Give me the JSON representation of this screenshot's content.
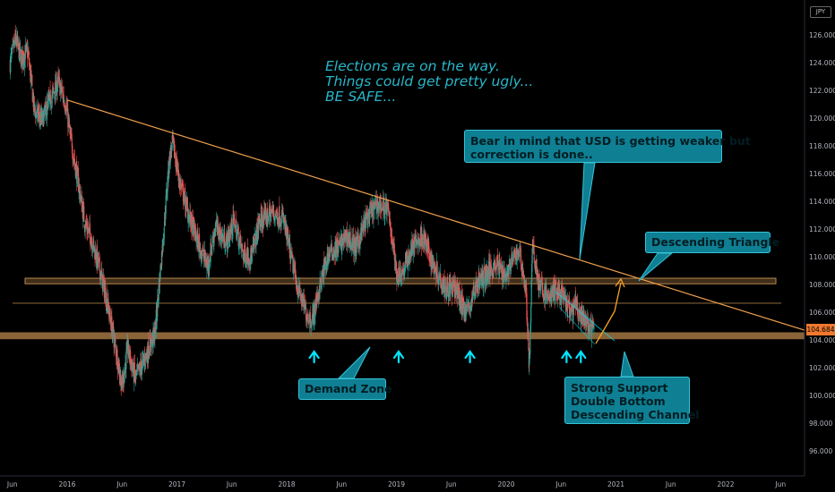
{
  "chart_data": {
    "type": "candlestick",
    "currency": "JPY",
    "last_price": "104.684",
    "y_ticks": [
      "126.000",
      "124.000",
      "122.000",
      "120.000",
      "118.000",
      "116.000",
      "114.000",
      "112.000",
      "110.000",
      "108.000",
      "106.000",
      "104.000",
      "102.000",
      "100.000",
      "98.000",
      "96.000"
    ],
    "ylim": [
      95,
      127.2
    ],
    "x_ticks": [
      {
        "t": 2015.5,
        "label": "Jun"
      },
      {
        "t": 2016.0,
        "label": "2016"
      },
      {
        "t": 2016.5,
        "label": "Jun"
      },
      {
        "t": 2017.0,
        "label": "2017"
      },
      {
        "t": 2017.5,
        "label": "Jun"
      },
      {
        "t": 2018.0,
        "label": "2018"
      },
      {
        "t": 2018.5,
        "label": "Jun"
      },
      {
        "t": 2019.0,
        "label": "2019"
      },
      {
        "t": 2019.5,
        "label": "Jun"
      },
      {
        "t": 2020.0,
        "label": "2020"
      },
      {
        "t": 2020.5,
        "label": "Jun"
      },
      {
        "t": 2021.0,
        "label": "2021"
      },
      {
        "t": 2021.5,
        "label": "Jun"
      },
      {
        "t": 2022.0,
        "label": "2022"
      },
      {
        "t": 2022.5,
        "label": "Jun"
      }
    ],
    "price_path": [
      [
        2015.48,
        124.0
      ],
      [
        2015.53,
        125.7
      ],
      [
        2015.58,
        124.3
      ],
      [
        2015.64,
        124.8
      ],
      [
        2015.7,
        120.6
      ],
      [
        2015.77,
        119.8
      ],
      [
        2015.84,
        121.2
      ],
      [
        2015.92,
        122.6
      ],
      [
        2015.99,
        120.9
      ],
      [
        2016.03,
        118.5
      ],
      [
        2016.08,
        116.3
      ],
      [
        2016.16,
        112.5
      ],
      [
        2016.22,
        111.3
      ],
      [
        2016.3,
        109.0
      ],
      [
        2016.37,
        106.5
      ],
      [
        2016.45,
        103.0
      ],
      [
        2016.5,
        100.6
      ],
      [
        2016.55,
        103.4
      ],
      [
        2016.62,
        101.2
      ],
      [
        2016.7,
        102.5
      ],
      [
        2016.8,
        104.5
      ],
      [
        2016.87,
        111.0
      ],
      [
        2016.93,
        117.0
      ],
      [
        2016.96,
        118.2
      ],
      [
        2017.02,
        115.6
      ],
      [
        2017.1,
        113.2
      ],
      [
        2017.17,
        111.5
      ],
      [
        2017.28,
        109.3
      ],
      [
        2017.35,
        112.2
      ],
      [
        2017.45,
        111.0
      ],
      [
        2017.52,
        112.6
      ],
      [
        2017.6,
        110.2
      ],
      [
        2017.68,
        110.0
      ],
      [
        2017.75,
        112.5
      ],
      [
        2017.87,
        113.2
      ],
      [
        2017.97,
        112.7
      ],
      [
        2018.03,
        110.3
      ],
      [
        2018.1,
        107.8
      ],
      [
        2018.18,
        105.9
      ],
      [
        2018.23,
        105.4
      ],
      [
        2018.3,
        107.8
      ],
      [
        2018.38,
        110.2
      ],
      [
        2018.47,
        110.7
      ],
      [
        2018.55,
        111.5
      ],
      [
        2018.63,
        110.6
      ],
      [
        2018.73,
        112.8
      ],
      [
        2018.83,
        113.8
      ],
      [
        2018.92,
        113.4
      ],
      [
        2018.96,
        111.4
      ],
      [
        2019.0,
        108.8
      ],
      [
        2019.06,
        108.9
      ],
      [
        2019.15,
        110.8
      ],
      [
        2019.24,
        111.5
      ],
      [
        2019.33,
        109.5
      ],
      [
        2019.45,
        107.8
      ],
      [
        2019.55,
        107.6
      ],
      [
        2019.6,
        106.4
      ],
      [
        2019.66,
        106.2
      ],
      [
        2019.73,
        108.1
      ],
      [
        2019.8,
        108.6
      ],
      [
        2019.9,
        109.5
      ],
      [
        2020.0,
        108.7
      ],
      [
        2020.05,
        109.6
      ],
      [
        2020.12,
        110.5
      ],
      [
        2020.18,
        107.5
      ],
      [
        2020.21,
        102.0
      ],
      [
        2020.24,
        110.7
      ],
      [
        2020.3,
        108.0
      ],
      [
        2020.38,
        107.0
      ],
      [
        2020.45,
        107.6
      ],
      [
        2020.5,
        107.3
      ],
      [
        2020.55,
        106.5
      ],
      [
        2020.6,
        105.9
      ],
      [
        2020.63,
        106.6
      ],
      [
        2020.68,
        105.6
      ],
      [
        2020.73,
        105.3
      ],
      [
        2020.78,
        104.7
      ],
      [
        2020.8,
        104.7
      ]
    ],
    "annotations": {
      "elections_note": "Elections are on the way.\nThings could get pretty ugly...\nBE SAFE...",
      "bear_note": "Bear in mind that USD is getting weaker but\ncorrection is done..",
      "triangle_label": "Descending Triangle",
      "demand_zone_label": "Demand Zone",
      "support_label": "Strong Support\nDouble Bottom\nDescending Channel"
    },
    "levels": {
      "demand_zone": [
        104.05,
        104.55
      ],
      "resistance_zone": [
        108.05,
        108.45
      ],
      "mid_line": 106.65,
      "triangle_from": [
        2016.0,
        121.3
      ],
      "triangle_to": [
        2022.72,
        104.7
      ]
    },
    "support_arrow_times": [
      2018.25,
      2019.02,
      2019.67,
      2020.55,
      2020.68
    ],
    "grid": false,
    "colors": {
      "background": "#000000",
      "up": "#26a69a",
      "down": "#ef5350",
      "trendline": "#f0a04b",
      "zone": "#b8864b",
      "callout_bg": "#0f7f93",
      "annotation_text": "#29b6c9",
      "arrow": "#00e5ff",
      "price_badge": "#f0792e"
    }
  }
}
